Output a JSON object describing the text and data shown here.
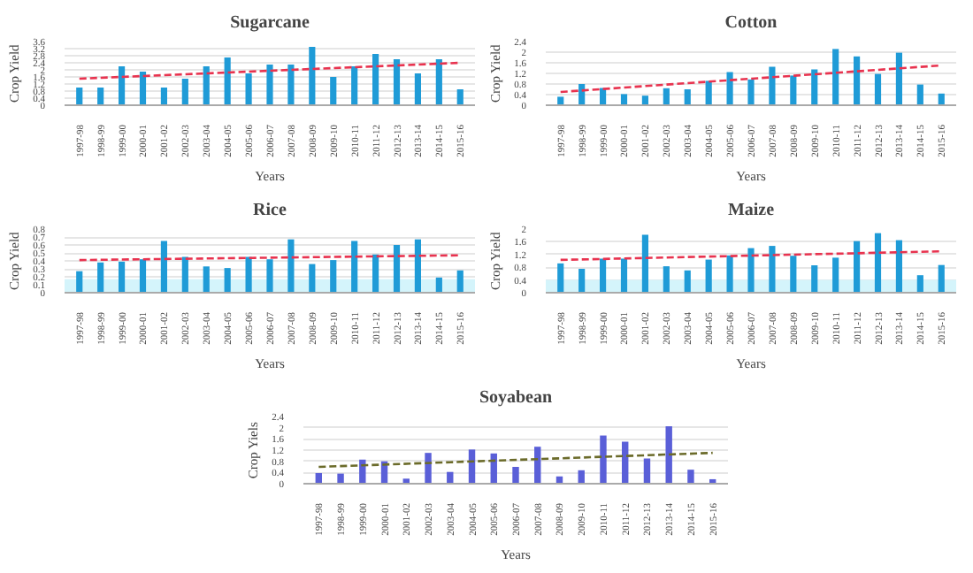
{
  "chart_data": [
    {
      "type": "bar",
      "title": "Sugarcane",
      "xlabel": "Years",
      "ylabel": "Crop Yield",
      "grid": "y",
      "categories": [
        "1997-98",
        "1998-99",
        "1999-00",
        "2000-01",
        "2001-02",
        "2002-03",
        "2003-04",
        "2004-05",
        "2005-06",
        "2006-07",
        "2007-08",
        "2008-09",
        "2009-10",
        "2010-11",
        "2011-12",
        "2012-13",
        "2013-14",
        "2014-15",
        "2015-16"
      ],
      "ylim": [
        0,
        3.6
      ],
      "yticks": [
        0,
        0.4,
        0.8,
        1.2,
        1.6,
        2,
        2.4,
        2.8,
        3.2,
        3.6
      ],
      "series": [
        {
          "color": "#1f9bd7",
          "values": [
            1.0,
            1.0,
            2.2,
            1.9,
            1.0,
            1.5,
            2.2,
            2.7,
            1.8,
            2.3,
            2.3,
            3.3,
            1.6,
            2.2,
            2.9,
            2.6,
            1.8,
            2.6,
            0.9
          ]
        },
        {
          "type": "line",
          "color": "#e8334f",
          "line_style": "dashed",
          "x": [
            "1997-98",
            "2015-16"
          ],
          "values": [
            1.5,
            2.4
          ]
        }
      ]
    },
    {
      "type": "bar",
      "title": "Cotton",
      "xlabel": "Years",
      "ylabel": "Crop Yield",
      "grid": "y",
      "categories": [
        "1997-98",
        "1998-99",
        "1999-00",
        "2000-01",
        "2001-02",
        "2002-03",
        "2003-04",
        "2004-05",
        "2005-06",
        "2006-07",
        "2007-08",
        "2008-09",
        "2009-10",
        "2010-11",
        "2011-12",
        "2012-13",
        "2013-14",
        "2014-15",
        "2015-16"
      ],
      "ylim": [
        0,
        2.4
      ],
      "yticks": [
        0,
        0.4,
        0.8,
        1.2,
        1.6,
        2,
        2.4
      ],
      "series": [
        {
          "color": "#1f9bd7",
          "values": [
            0.32,
            0.8,
            0.65,
            0.42,
            0.36,
            0.64,
            0.6,
            0.92,
            1.25,
            0.97,
            1.45,
            1.12,
            1.35,
            2.12,
            1.84,
            1.18,
            1.98,
            0.78,
            0.44
          ]
        },
        {
          "type": "line",
          "color": "#e8334f",
          "line_style": "dashed",
          "x": [
            "1997-98",
            "2015-16"
          ],
          "values": [
            0.5,
            1.5
          ]
        }
      ]
    },
    {
      "type": "bar",
      "title": "Rice",
      "xlabel": "Years",
      "ylabel": "Crop Yield",
      "grid": "y",
      "categories": [
        "1997-98",
        "1998-99",
        "1999-00",
        "2000-01",
        "2001-02",
        "2002-03",
        "2003-04",
        "2004-05",
        "2005-06",
        "2006-07",
        "2007-08",
        "2008-09",
        "2009-10",
        "2010-11",
        "2011-12",
        "2012-13",
        "2013-14",
        "2014-15",
        "2015-16"
      ],
      "ylim": [
        0,
        0.8
      ],
      "yticks": [
        0,
        0.1,
        0.2,
        0.3,
        0.4,
        0.5,
        0.6,
        0.7,
        0.8
      ],
      "bands": [
        {
          "axis": "y",
          "from": 0,
          "to": 0.17,
          "color": "#d4f4fb"
        }
      ],
      "series": [
        {
          "color": "#1f9bd7",
          "values": [
            0.27,
            0.38,
            0.39,
            0.42,
            0.65,
            0.45,
            0.33,
            0.31,
            0.45,
            0.42,
            0.67,
            0.36,
            0.41,
            0.65,
            0.48,
            0.6,
            0.67,
            0.19,
            0.28
          ]
        },
        {
          "type": "line",
          "color": "#e8334f",
          "line_style": "dashed",
          "x": [
            "1997-98",
            "2015-16"
          ],
          "values": [
            0.41,
            0.47
          ]
        }
      ]
    },
    {
      "type": "bar",
      "title": "Maize",
      "xlabel": "Years",
      "ylabel": "Crop Yield",
      "grid": "y",
      "categories": [
        "1997-98",
        "1998-99",
        "1999-00",
        "2000-01",
        "2001-02",
        "2002-03",
        "2003-04",
        "2004-05",
        "2005-06",
        "2006-07",
        "2007-08",
        "2008-09",
        "2009-10",
        "2010-11",
        "2011-12",
        "2012-13",
        "2013-14",
        "2014-15",
        "2015-16"
      ],
      "ylim": [
        0,
        2
      ],
      "yticks": [
        0,
        0.4,
        0.8,
        1.2,
        1.6,
        2
      ],
      "bands": [
        {
          "axis": "y",
          "from": 0,
          "to": 0.4,
          "color": "#d4f4fb"
        }
      ],
      "series": [
        {
          "color": "#1f9bd7",
          "values": [
            0.92,
            0.75,
            1.07,
            1.07,
            1.82,
            0.83,
            0.7,
            1.04,
            1.17,
            1.4,
            1.47,
            1.16,
            0.86,
            1.1,
            1.62,
            1.87,
            1.65,
            0.55,
            0.87
          ]
        },
        {
          "type": "line",
          "color": "#e8334f",
          "line_style": "dashed",
          "x": [
            "1997-98",
            "2015-16"
          ],
          "values": [
            1.03,
            1.3
          ]
        }
      ]
    },
    {
      "type": "bar",
      "title": "Soyabean",
      "xlabel": "Years",
      "ylabel": "Crop Yiels",
      "grid": "y",
      "categories": [
        "1997-98",
        "1998-99",
        "1999-00",
        "2000-01",
        "2001-02",
        "2002-03",
        "2003-04",
        "2004-05",
        "2005-06",
        "2006-07",
        "2007-08",
        "2008-09",
        "2009-10",
        "2010-11",
        "2011-12",
        "2012-13",
        "2013-14",
        "2014-15",
        "2015-16"
      ],
      "ylim": [
        0,
        2.4
      ],
      "yticks": [
        0,
        0.4,
        0.8,
        1.2,
        1.6,
        2,
        2.4
      ],
      "series": [
        {
          "color": "#5a5fd8",
          "values": [
            0.38,
            0.36,
            0.86,
            0.8,
            0.18,
            1.1,
            0.42,
            1.22,
            1.08,
            0.6,
            1.32,
            0.26,
            0.48,
            1.72,
            1.5,
            0.9,
            2.05,
            0.5,
            0.16
          ]
        },
        {
          "type": "line",
          "color": "#6b6b2a",
          "line_style": "dashed",
          "x": [
            "1997-98",
            "2015-16"
          ],
          "values": [
            0.6,
            1.1
          ]
        }
      ]
    }
  ]
}
